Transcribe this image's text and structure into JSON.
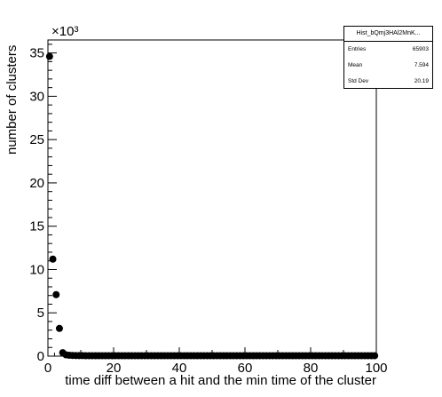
{
  "chart_data": {
    "type": "scatter",
    "title": "",
    "xlabel": "time diff between a hit and the min time of the cluster",
    "ylabel": "number of clusters",
    "y_multiplier_label": "×10³",
    "xlim": [
      0,
      100
    ],
    "ylim": [
      0,
      36.5
    ],
    "x_ticks": [
      0,
      20,
      40,
      60,
      80,
      100
    ],
    "y_ticks": [
      0,
      5,
      10,
      15,
      20,
      25,
      30,
      35
    ],
    "grid": false,
    "legend": "none",
    "marker_color": "#000000",
    "series": [
      {
        "x": [
          0.5,
          1.5,
          2.5,
          3.5,
          4.5,
          5.5,
          6.5,
          7.5,
          8.5,
          9.5,
          10.5,
          11.5,
          12.5,
          13.5,
          14.5,
          15.5,
          16.5,
          17.5,
          18.5,
          19.5,
          20.5,
          21.5,
          22.5,
          23.5,
          24.5,
          25.5,
          26.5,
          27.5,
          28.5,
          29.5,
          30.5,
          31.5,
          32.5,
          33.5,
          34.5,
          35.5,
          36.5,
          37.5,
          38.5,
          39.5,
          40.5,
          41.5,
          42.5,
          43.5,
          44.5,
          45.5,
          46.5,
          47.5,
          48.5,
          49.5,
          50.5,
          51.5,
          52.5,
          53.5,
          54.5,
          55.5,
          56.5,
          57.5,
          58.5,
          59.5,
          60.5,
          61.5,
          62.5,
          63.5,
          64.5,
          65.5,
          66.5,
          67.5,
          68.5,
          69.5,
          70.5,
          71.5,
          72.5,
          73.5,
          74.5,
          75.5,
          76.5,
          77.5,
          78.5,
          79.5,
          80.5,
          81.5,
          82.5,
          83.5,
          84.5,
          85.5,
          86.5,
          87.5,
          88.5,
          89.5,
          90.5,
          91.5,
          92.5,
          93.5,
          94.5,
          95.5,
          96.5,
          97.5,
          98.5,
          99.5
        ],
        "y": [
          34.6,
          11.2,
          7.1,
          3.2,
          0.4,
          0.15,
          0.1,
          0.08,
          0.07,
          0.06,
          0.06,
          0.05,
          0.05,
          0.05,
          0.05,
          0.05,
          0.05,
          0.05,
          0.05,
          0.05,
          0.05,
          0.05,
          0.05,
          0.05,
          0.05,
          0.05,
          0.05,
          0.05,
          0.05,
          0.05,
          0.05,
          0.05,
          0.05,
          0.05,
          0.05,
          0.05,
          0.05,
          0.05,
          0.05,
          0.05,
          0.05,
          0.05,
          0.05,
          0.05,
          0.05,
          0.05,
          0.05,
          0.05,
          0.05,
          0.05,
          0.05,
          0.05,
          0.05,
          0.05,
          0.05,
          0.05,
          0.05,
          0.05,
          0.05,
          0.05,
          0.05,
          0.05,
          0.05,
          0.05,
          0.05,
          0.05,
          0.05,
          0.05,
          0.05,
          0.05,
          0.05,
          0.05,
          0.05,
          0.05,
          0.05,
          0.05,
          0.05,
          0.05,
          0.05,
          0.05,
          0.05,
          0.05,
          0.05,
          0.05,
          0.05,
          0.05,
          0.05,
          0.05,
          0.05,
          0.05,
          0.05,
          0.05,
          0.05,
          0.05,
          0.05,
          0.05,
          0.05,
          0.05,
          0.05,
          0.05
        ]
      }
    ]
  },
  "stats": {
    "name": "Hist_bQmj3HAl2MnK...",
    "entries_label": "Entries",
    "entries_value": "65903",
    "mean_label": "Mean",
    "mean_value": "7.594",
    "std_label": "Std Dev",
    "std_value": "20.19"
  }
}
